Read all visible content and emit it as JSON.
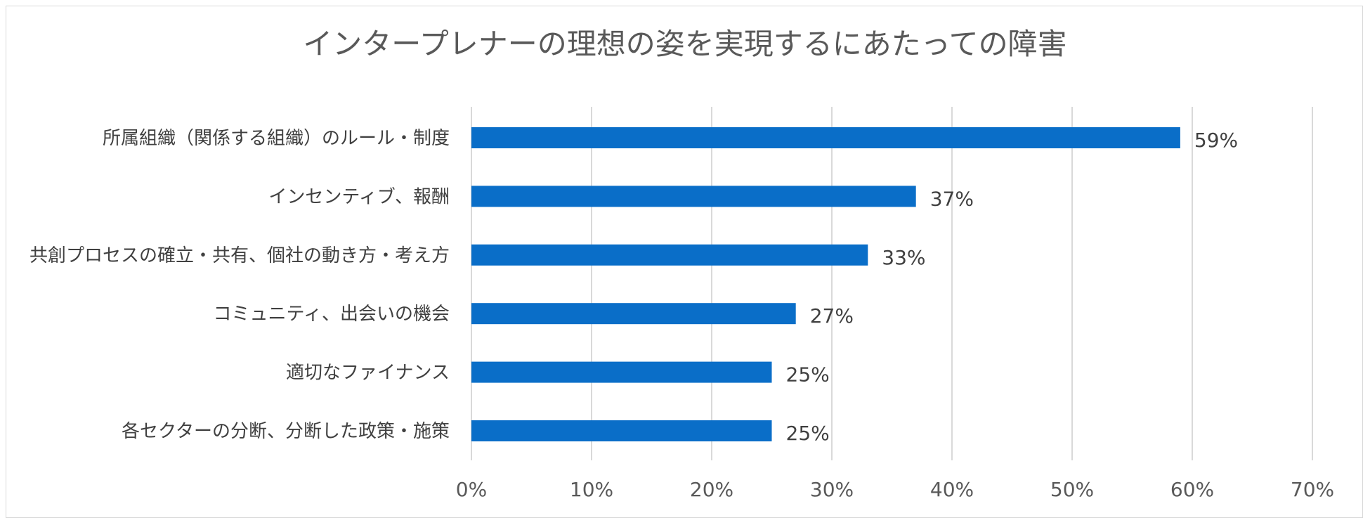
{
  "chart_data": {
    "type": "bar",
    "orientation": "horizontal",
    "title": "インタープレナーの理想の姿を実現するにあたっての障害",
    "categories": [
      "所属組織（関係する組織）のルール・制度",
      "インセンティブ、報酬",
      "共創プロセスの確立・共有、個社の動き方・考え方",
      "コミュニティ、出会いの機会",
      "適切なファイナンス",
      "各セクターの分断、分断した政策・施策"
    ],
    "values": [
      59,
      37,
      33,
      27,
      25,
      25
    ],
    "data_labels": [
      "59%",
      "37%",
      "33%",
      "27%",
      "25%",
      "25%"
    ],
    "xlim": [
      0,
      70
    ],
    "x_ticks": [
      "0%",
      "10%",
      "20%",
      "30%",
      "40%",
      "50%",
      "60%",
      "70%"
    ],
    "grid": true,
    "bar_color": "#0a6ec8",
    "grid_color": "#d9d9d9"
  }
}
